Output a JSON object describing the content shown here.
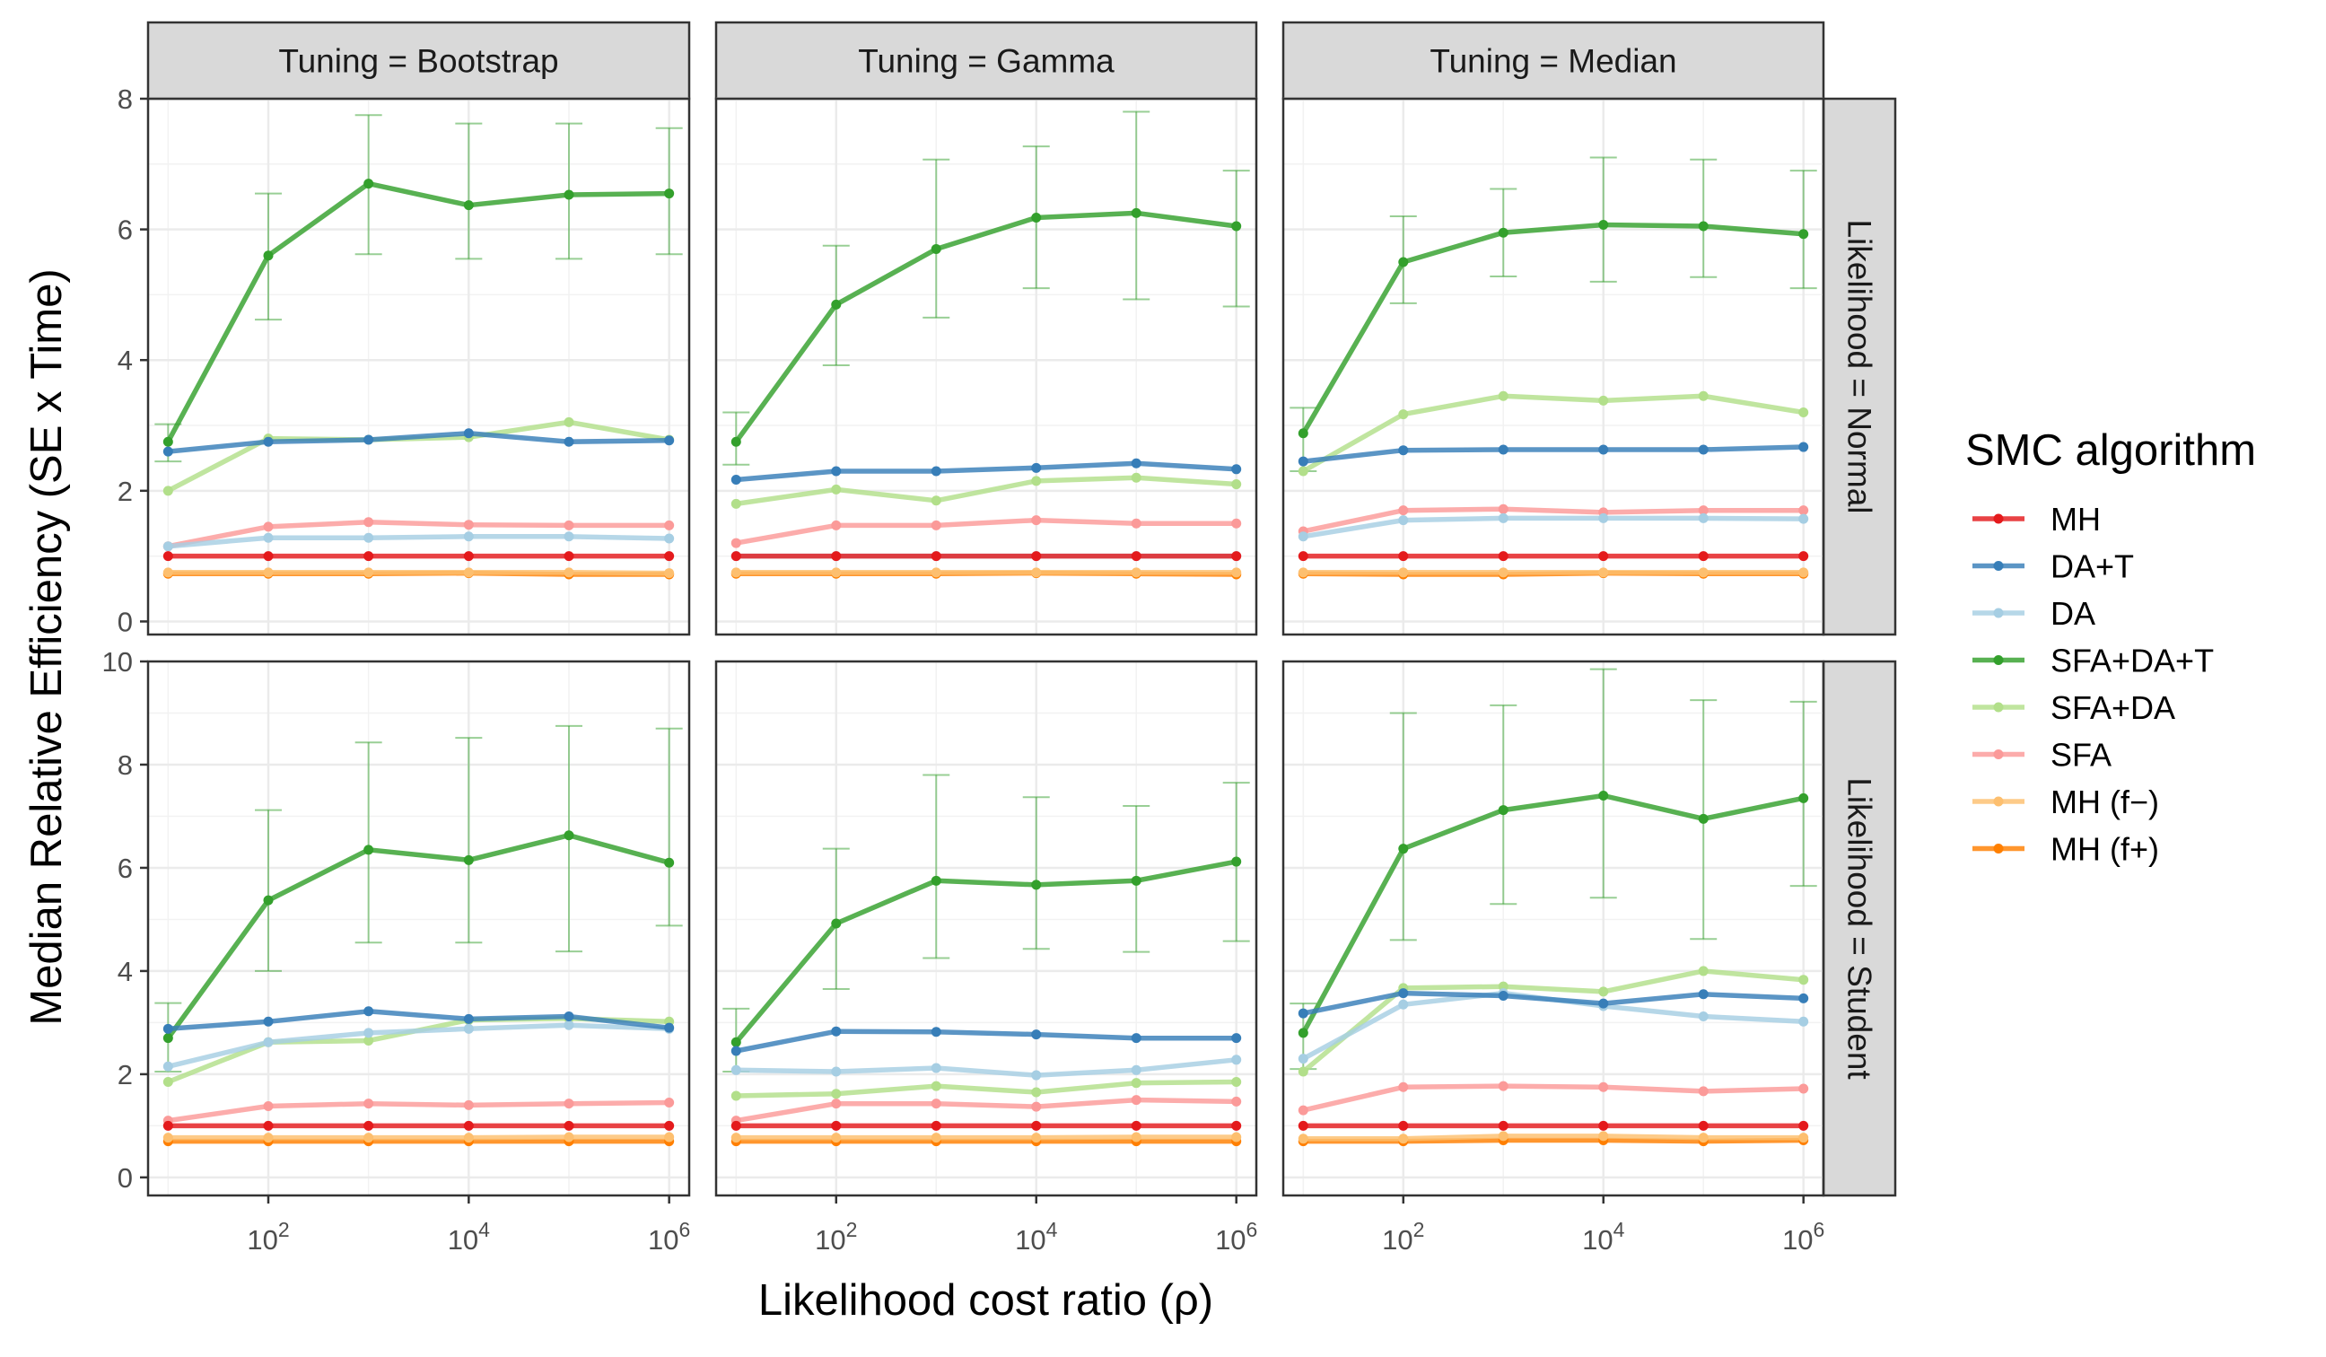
{
  "chart_data": {
    "type": "line",
    "xlabel": "Likelihood cost ratio (ρ)",
    "ylabel": "Median Relative Efficiency (SE x Time)",
    "x_scale": "log10",
    "x": [
      10,
      100,
      1000,
      10000,
      100000,
      1000000
    ],
    "x_ticks": [
      {
        "value": 100,
        "base": "10",
        "exp": "2"
      },
      {
        "value": 10000,
        "base": "10",
        "exp": "4"
      },
      {
        "value": 1000000,
        "base": "10",
        "exp": "6"
      }
    ],
    "columns": [
      "Tuning = Bootstrap",
      "Tuning = Gamma",
      "Tuning = Median"
    ],
    "rows": [
      "Likelihood = Normal",
      "Likelihood = Student"
    ],
    "row_ylims": [
      [
        -0.2,
        8.0
      ],
      [
        -0.35,
        10.0
      ]
    ],
    "row_yticks": [
      [
        "0",
        "2",
        "4",
        "6",
        "8"
      ],
      [
        "0",
        "2",
        "4",
        "6",
        "8",
        "10"
      ]
    ],
    "grid": true,
    "legend": {
      "title": "SMC algorithm",
      "position": "right"
    },
    "series_colors": [
      "#E41A1C",
      "#377EB8",
      "#A6CEE3",
      "#33A02C",
      "#B2DF8A",
      "#FB9A99",
      "#FDBF6F",
      "#FF7F00"
    ],
    "series_names": [
      "MH",
      "DA+T",
      "DA",
      "SFA+DA+T",
      "SFA+DA",
      "SFA",
      "MH (f−)",
      "MH (f+)"
    ],
    "panels": [
      {
        "row": 0,
        "col": 0,
        "series": [
          {
            "name": "MH",
            "values": [
              1.0,
              1.0,
              1.0,
              1.0,
              1.0,
              1.0
            ]
          },
          {
            "name": "DA+T",
            "values": [
              2.6,
              2.75,
              2.78,
              2.88,
              2.75,
              2.77
            ]
          },
          {
            "name": "DA",
            "values": [
              1.15,
              1.28,
              1.28,
              1.3,
              1.3,
              1.27
            ]
          },
          {
            "name": "SFA+DA+T",
            "values": [
              2.75,
              5.6,
              6.7,
              6.37,
              6.53,
              6.55
            ],
            "err_low": [
              2.45,
              4.62,
              5.62,
              5.55,
              5.55,
              5.62
            ],
            "err_high": [
              3.02,
              6.55,
              7.75,
              7.62,
              7.62,
              7.55
            ]
          },
          {
            "name": "SFA+DA",
            "values": [
              2.0,
              2.8,
              2.78,
              2.82,
              3.05,
              2.78
            ]
          },
          {
            "name": "SFA",
            "values": [
              1.15,
              1.45,
              1.52,
              1.48,
              1.47,
              1.47
            ]
          },
          {
            "name": "MH (f−)",
            "values": [
              0.75,
              0.75,
              0.75,
              0.75,
              0.75,
              0.74
            ]
          },
          {
            "name": "MH (f+)",
            "values": [
              0.73,
              0.73,
              0.73,
              0.74,
              0.72,
              0.72
            ]
          }
        ]
      },
      {
        "row": 0,
        "col": 1,
        "series": [
          {
            "name": "MH",
            "values": [
              1.0,
              1.0,
              1.0,
              1.0,
              1.0,
              1.0
            ]
          },
          {
            "name": "DA+T",
            "values": [
              2.17,
              2.3,
              2.3,
              2.35,
              2.42,
              2.33
            ]
          },
          {
            "name": "DA",
            "values": [
              1.0,
              1.0,
              1.0,
              1.0,
              1.0,
              1.0
            ]
          },
          {
            "name": "SFA+DA+T",
            "values": [
              2.75,
              4.85,
              5.7,
              6.18,
              6.25,
              6.05
            ],
            "err_low": [
              2.4,
              3.92,
              4.65,
              5.1,
              4.93,
              4.82
            ],
            "err_high": [
              3.2,
              5.75,
              7.07,
              7.27,
              7.8,
              6.9
            ]
          },
          {
            "name": "SFA+DA",
            "values": [
              1.8,
              2.02,
              1.85,
              2.15,
              2.2,
              2.1
            ]
          },
          {
            "name": "SFA",
            "values": [
              1.2,
              1.47,
              1.47,
              1.55,
              1.5,
              1.5
            ]
          },
          {
            "name": "MH (f−)",
            "values": [
              0.75,
              0.75,
              0.75,
              0.75,
              0.75,
              0.75
            ]
          },
          {
            "name": "MH (f+)",
            "values": [
              0.73,
              0.73,
              0.73,
              0.74,
              0.73,
              0.72
            ]
          }
        ]
      },
      {
        "row": 0,
        "col": 2,
        "series": [
          {
            "name": "MH",
            "values": [
              1.0,
              1.0,
              1.0,
              1.0,
              1.0,
              1.0
            ]
          },
          {
            "name": "DA+T",
            "values": [
              2.45,
              2.62,
              2.63,
              2.63,
              2.63,
              2.67
            ]
          },
          {
            "name": "DA",
            "values": [
              1.3,
              1.55,
              1.58,
              1.58,
              1.58,
              1.57
            ]
          },
          {
            "name": "SFA+DA+T",
            "values": [
              2.88,
              5.5,
              5.95,
              6.07,
              6.05,
              5.93
            ],
            "err_low": [
              2.3,
              4.87,
              5.28,
              5.2,
              5.27,
              5.1
            ],
            "err_high": [
              3.27,
              6.2,
              6.62,
              7.1,
              7.07,
              6.9
            ]
          },
          {
            "name": "SFA+DA",
            "values": [
              2.3,
              3.17,
              3.45,
              3.38,
              3.45,
              3.2
            ]
          },
          {
            "name": "SFA",
            "values": [
              1.38,
              1.7,
              1.72,
              1.67,
              1.7,
              1.7
            ]
          },
          {
            "name": "MH (f−)",
            "values": [
              0.75,
              0.75,
              0.75,
              0.75,
              0.75,
              0.75
            ]
          },
          {
            "name": "MH (f+)",
            "values": [
              0.73,
              0.72,
              0.72,
              0.74,
              0.73,
              0.73
            ]
          }
        ]
      },
      {
        "row": 1,
        "col": 0,
        "series": [
          {
            "name": "MH",
            "values": [
              1.0,
              1.0,
              1.0,
              1.0,
              1.0,
              1.0
            ]
          },
          {
            "name": "DA+T",
            "values": [
              2.88,
              3.02,
              3.22,
              3.07,
              3.12,
              2.9
            ]
          },
          {
            "name": "DA",
            "values": [
              2.15,
              2.62,
              2.8,
              2.88,
              2.95,
              2.88
            ]
          },
          {
            "name": "SFA+DA+T",
            "values": [
              2.7,
              5.37,
              6.35,
              6.15,
              6.63,
              6.1
            ],
            "err_low": [
              2.05,
              4.0,
              4.55,
              4.55,
              4.38,
              4.88
            ],
            "err_high": [
              3.38,
              7.12,
              8.43,
              8.52,
              8.75,
              8.7
            ]
          },
          {
            "name": "SFA+DA",
            "values": [
              1.85,
              2.62,
              2.65,
              3.05,
              3.08,
              3.02
            ]
          },
          {
            "name": "SFA",
            "values": [
              1.1,
              1.38,
              1.43,
              1.4,
              1.43,
              1.45
            ]
          },
          {
            "name": "MH (f−)",
            "values": [
              0.77,
              0.77,
              0.77,
              0.77,
              0.78,
              0.78
            ]
          },
          {
            "name": "MH (f+)",
            "values": [
              0.7,
              0.7,
              0.7,
              0.7,
              0.7,
              0.7
            ]
          }
        ]
      },
      {
        "row": 1,
        "col": 1,
        "series": [
          {
            "name": "MH",
            "values": [
              1.0,
              1.0,
              1.0,
              1.0,
              1.0,
              1.0
            ]
          },
          {
            "name": "DA+T",
            "values": [
              2.45,
              2.83,
              2.82,
              2.77,
              2.7,
              2.7
            ]
          },
          {
            "name": "DA",
            "values": [
              2.08,
              2.05,
              2.12,
              1.98,
              2.08,
              2.28
            ]
          },
          {
            "name": "SFA+DA+T",
            "values": [
              2.62,
              4.92,
              5.75,
              5.67,
              5.75,
              6.12
            ],
            "err_low": [
              2.05,
              3.65,
              4.25,
              4.43,
              4.37,
              4.58
            ],
            "err_high": [
              3.27,
              6.37,
              7.8,
              7.37,
              7.2,
              7.65
            ]
          },
          {
            "name": "SFA+DA",
            "values": [
              1.58,
              1.62,
              1.77,
              1.65,
              1.83,
              1.85
            ]
          },
          {
            "name": "SFA",
            "values": [
              1.1,
              1.43,
              1.43,
              1.37,
              1.5,
              1.47
            ]
          },
          {
            "name": "MH (f−)",
            "values": [
              0.77,
              0.77,
              0.77,
              0.77,
              0.78,
              0.78
            ]
          },
          {
            "name": "MH (f+)",
            "values": [
              0.7,
              0.7,
              0.7,
              0.7,
              0.7,
              0.7
            ]
          }
        ]
      },
      {
        "row": 1,
        "col": 2,
        "series": [
          {
            "name": "MH",
            "values": [
              1.0,
              1.0,
              1.0,
              1.0,
              1.0,
              1.0
            ]
          },
          {
            "name": "DA+T",
            "values": [
              3.18,
              3.57,
              3.52,
              3.37,
              3.55,
              3.47
            ]
          },
          {
            "name": "DA",
            "values": [
              2.3,
              3.35,
              3.57,
              3.32,
              3.12,
              3.02
            ]
          },
          {
            "name": "SFA+DA+T",
            "values": [
              2.8,
              6.37,
              7.12,
              7.4,
              6.95,
              7.35
            ],
            "err_low": [
              2.1,
              4.6,
              5.3,
              5.42,
              4.62,
              5.65
            ],
            "err_high": [
              3.37,
              9.0,
              9.15,
              9.85,
              9.25,
              9.22
            ]
          },
          {
            "name": "SFA+DA",
            "values": [
              2.05,
              3.67,
              3.7,
              3.6,
              4.0,
              3.83
            ]
          },
          {
            "name": "SFA",
            "values": [
              1.3,
              1.75,
              1.77,
              1.75,
              1.67,
              1.72
            ]
          },
          {
            "name": "MH (f−)",
            "values": [
              0.75,
              0.75,
              0.8,
              0.8,
              0.77,
              0.77
            ]
          },
          {
            "name": "MH (f+)",
            "values": [
              0.7,
              0.7,
              0.72,
              0.72,
              0.7,
              0.72
            ]
          }
        ]
      }
    ]
  }
}
